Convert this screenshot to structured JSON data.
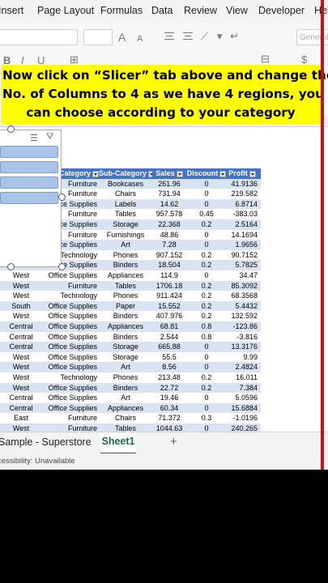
{
  "menu": [
    "Insert",
    "Page Layout",
    "Formulas",
    "Data",
    "Review",
    "View",
    "Developer",
    "Help"
  ],
  "ribbon": {
    "font_grow": "A",
    "font_shrink": "A",
    "bold": "B",
    "italic": "I",
    "underline": "U",
    "number_format": "General",
    "currency": "$"
  },
  "callout": {
    "lines": [
      "Now click on “Slicer” tab above and change the",
      "No. of Columns to 4 as we have 4 regions, you",
      "can choose according to your category"
    ]
  },
  "column_header_j": "J",
  "table": {
    "headers": [
      "",
      "Category",
      "Sub-Category",
      "Sales",
      "Discount",
      "Profit"
    ],
    "rows": [
      [
        "",
        "Furniture",
        "Bookcases",
        "261.96",
        "0",
        "41.9136"
      ],
      [
        "",
        "Furniture",
        "Chairs",
        "731.94",
        "0",
        "219.582"
      ],
      [
        "",
        "Office Supplies",
        "Labels",
        "14.62",
        "0",
        "6.8714"
      ],
      [
        "",
        "Furniture",
        "Tables",
        "957.578",
        "0.45",
        "-383.03"
      ],
      [
        "",
        "Office Supplies",
        "Storage",
        "22.368",
        "0.2",
        "2.5164"
      ],
      [
        "",
        "Furniture",
        "Furnishings",
        "48.86",
        "0",
        "14.1694"
      ],
      [
        "",
        "Office Supplies",
        "Art",
        "7.28",
        "0",
        "1.9656"
      ],
      [
        "",
        "Technology",
        "Phones",
        "907.152",
        "0.2",
        "90.7152"
      ],
      [
        "West",
        "Office Supplies",
        "Binders",
        "18.504",
        "0.2",
        "5.7825"
      ],
      [
        "West",
        "Office Supplies",
        "Appliances",
        "114.9",
        "0",
        "34.47"
      ],
      [
        "West",
        "Furniture",
        "Tables",
        "1706.18",
        "0.2",
        "85.3092"
      ],
      [
        "West",
        "Technology",
        "Phones",
        "911.424",
        "0.2",
        "68.3568"
      ],
      [
        "South",
        "Office Supplies",
        "Paper",
        "15.552",
        "0.2",
        "5.4432"
      ],
      [
        "West",
        "Office Supplies",
        "Binders",
        "407.976",
        "0.2",
        "132.592"
      ],
      [
        "Central",
        "Office Supplies",
        "Appliances",
        "68.81",
        "0.8",
        "-123.86"
      ],
      [
        "Central",
        "Office Supplies",
        "Binders",
        "2.544",
        "0.8",
        "-3.816"
      ],
      [
        "Central",
        "Office Supplies",
        "Storage",
        "665.88",
        "0",
        "13.3176"
      ],
      [
        "West",
        "Office Supplies",
        "Storage",
        "55.5",
        "0",
        "9.99"
      ],
      [
        "West",
        "Office Supplies",
        "Art",
        "8.56",
        "0",
        "2.4824"
      ],
      [
        "West",
        "Technology",
        "Phones",
        "213.48",
        "0.2",
        "16.011"
      ],
      [
        "West",
        "Office Supplies",
        "Binders",
        "22.72",
        "0.2",
        "7.384"
      ],
      [
        "Central",
        "Office Supplies",
        "Art",
        "19.46",
        "0",
        "5.0596"
      ],
      [
        "Central",
        "Office Supplies",
        "Appliances",
        "60.34",
        "0",
        "15.6884"
      ],
      [
        "East",
        "Furniture",
        "Chairs",
        "71.372",
        "0.3",
        "-1.0196"
      ],
      [
        "West",
        "Furniture",
        "Tables",
        "1044.63",
        "0",
        "240.265"
      ]
    ]
  },
  "sheet_tabs": {
    "tab1": "Sample - Superstore",
    "tab2": "Sheet1",
    "add": "+"
  },
  "status": {
    "accessibility": "Accessibility: Unavailable"
  }
}
